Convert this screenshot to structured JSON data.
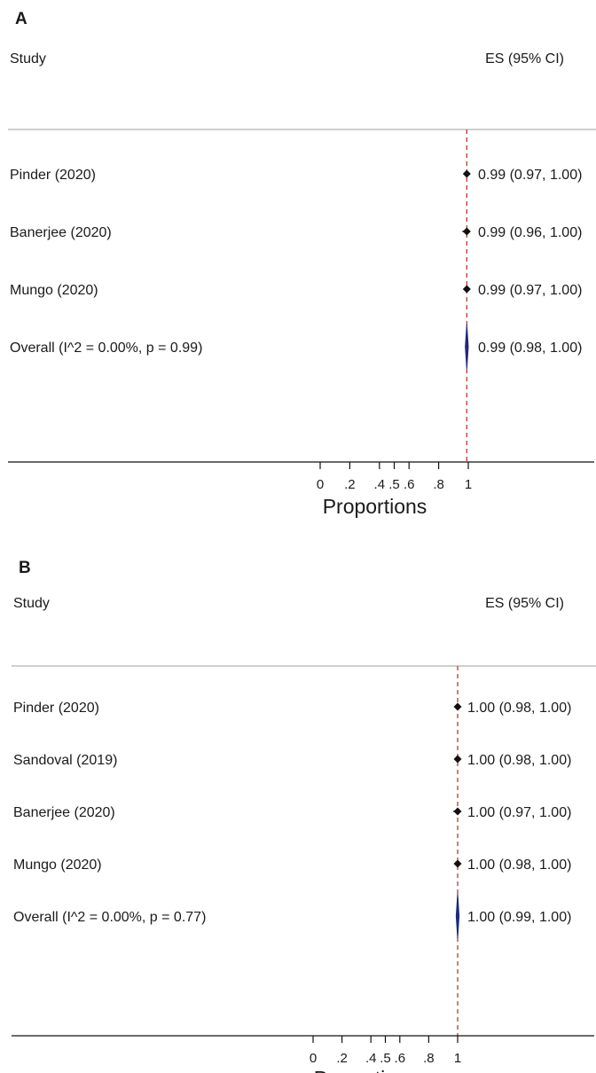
{
  "chart_data": [
    {
      "type": "forest",
      "panel": "A",
      "study_header": "Study",
      "es_header": "ES (95% CI)",
      "xlabel": "Proportions",
      "xlim": [
        0,
        1
      ],
      "xticks": [
        0,
        0.2,
        0.4,
        0.5,
        0.6,
        0.8,
        1
      ],
      "xtick_labels": [
        "0",
        ".2",
        ".4",
        ".5",
        ".6",
        ".8",
        "1"
      ],
      "reference_line": 0.99,
      "reference_color": "#c0392b",
      "studies": [
        {
          "label": "Pinder  (2020)",
          "es": 0.99,
          "lo": 0.97,
          "hi": 1.0,
          "es_text": "0.99 (0.97, 1.00)"
        },
        {
          "label": "Banerjee (2020)",
          "es": 0.99,
          "lo": 0.96,
          "hi": 1.0,
          "es_text": "0.99 (0.96, 1.00)"
        },
        {
          "label": "Mungo (2020)",
          "es": 0.99,
          "lo": 0.97,
          "hi": 1.0,
          "es_text": "0.99 (0.97, 1.00)"
        }
      ],
      "overall": {
        "label": "Overall  (I^2 = 0.00%, p = 0.99)",
        "es": 0.99,
        "lo": 0.98,
        "hi": 1.0,
        "es_text": "0.99 (0.98, 1.00)",
        "color": "#1f2a7a"
      }
    },
    {
      "type": "forest",
      "panel": "B",
      "study_header": "Study",
      "es_header": "ES (95% CI)",
      "xlabel": "Proportions",
      "xlim": [
        0,
        1
      ],
      "xticks": [
        0,
        0.2,
        0.4,
        0.5,
        0.6,
        0.8,
        1
      ],
      "xtick_labels": [
        "0",
        ".2",
        ".4",
        ".5",
        ".6",
        ".8",
        "1"
      ],
      "reference_line": 1.0,
      "reference_color": "#c0392b",
      "studies": [
        {
          "label": "Pinder  (2020)",
          "es": 1.0,
          "lo": 0.98,
          "hi": 1.0,
          "es_text": "1.00 (0.98, 1.00)"
        },
        {
          "label": "Sandoval (2019)",
          "es": 1.0,
          "lo": 0.98,
          "hi": 1.0,
          "es_text": "1.00 (0.98, 1.00)"
        },
        {
          "label": "Banerjee (2020)",
          "es": 1.0,
          "lo": 0.97,
          "hi": 1.0,
          "es_text": "1.00 (0.97, 1.00)"
        },
        {
          "label": "Mungo (2020)",
          "es": 1.0,
          "lo": 0.98,
          "hi": 1.0,
          "es_text": "1.00 (0.98, 1.00)"
        }
      ],
      "overall": {
        "label": "Overall  (I^2 = 0.00%, p = 0.77)",
        "es": 1.0,
        "lo": 0.99,
        "hi": 1.0,
        "es_text": "1.00 (0.99, 1.00)",
        "color": "#1f2a7a"
      }
    }
  ]
}
